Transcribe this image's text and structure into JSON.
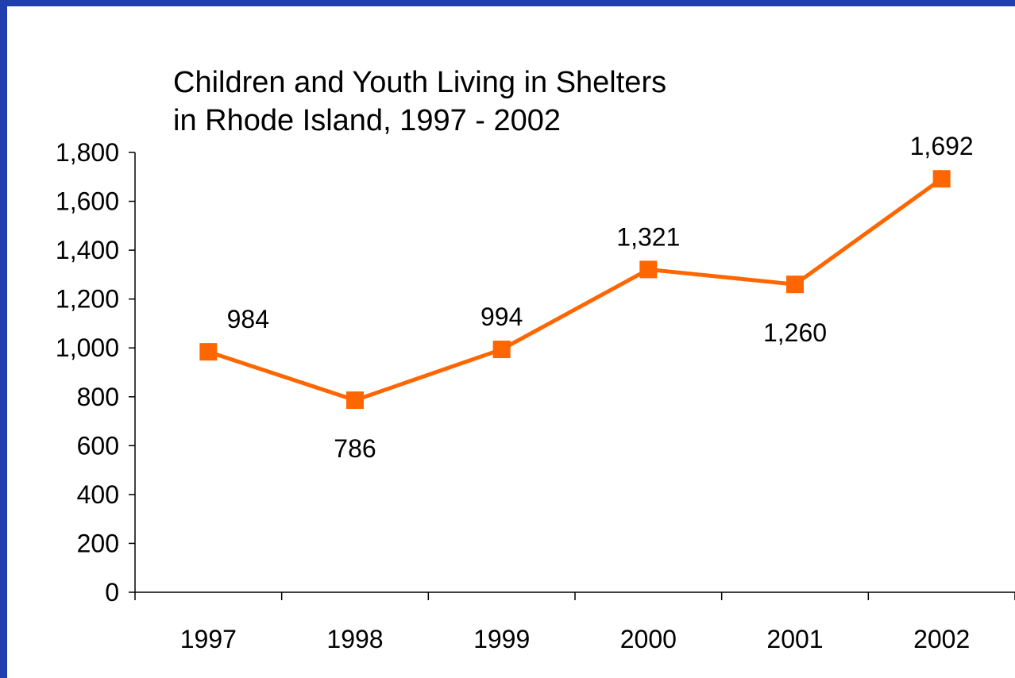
{
  "chart_data": {
    "type": "line",
    "title_lines": [
      "Children and Youth Living in Shelters",
      "in Rhode Island, 1997 - 2002"
    ],
    "categories": [
      "1997",
      "1998",
      "1999",
      "2000",
      "2001",
      "2002"
    ],
    "values": [
      984,
      786,
      994,
      1321,
      1260,
      1692
    ],
    "data_labels": [
      "984",
      "786",
      "994",
      "1,321",
      "1,260",
      "1,692"
    ],
    "y_ticks": [
      "0",
      "200",
      "400",
      "600",
      "800",
      "1,000",
      "1,200",
      "1,400",
      "1,600",
      "1,800"
    ],
    "ylim": [
      0,
      1800
    ],
    "xlabel": "",
    "ylabel": "",
    "grid": false,
    "legend": "none",
    "line_color": "#ff6600",
    "marker": "square"
  },
  "colors": {
    "frame": "#1f3fae",
    "background": "#ffffff"
  }
}
